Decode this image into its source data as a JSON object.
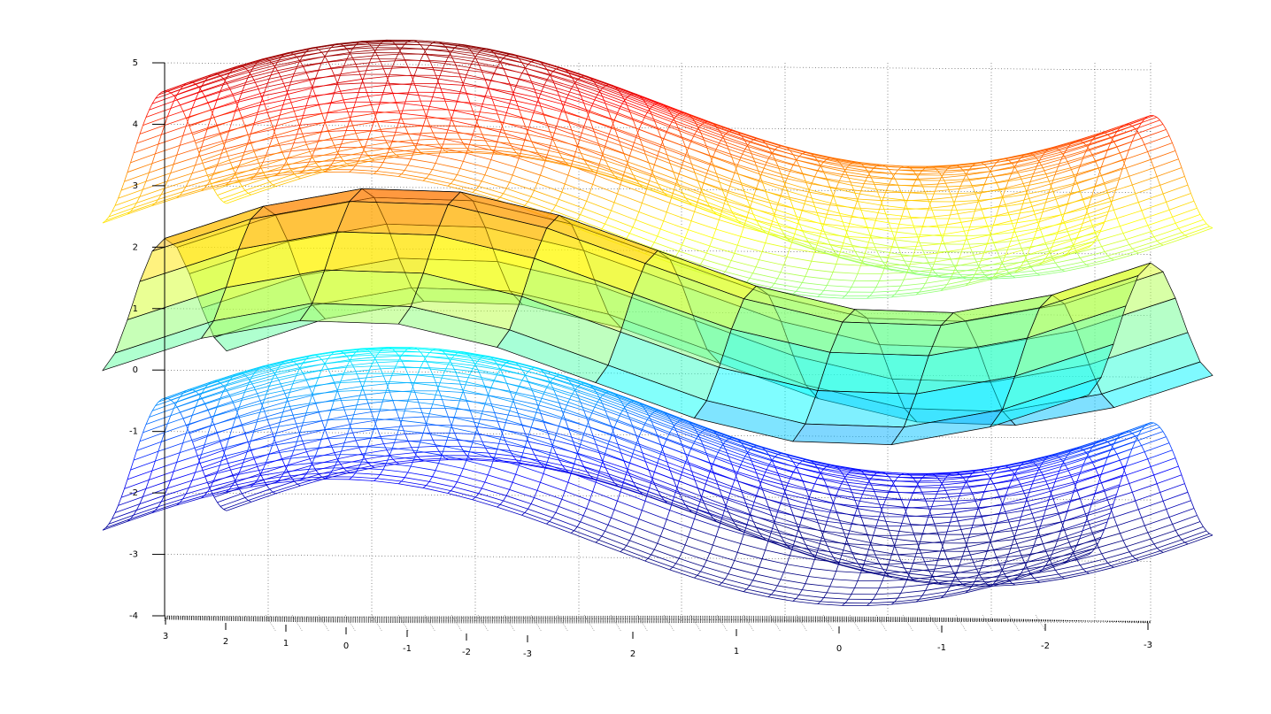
{
  "chart_data": {
    "type": "surface3d",
    "title": "",
    "xlabel": "",
    "ylabel": "",
    "zlabel": "",
    "zlim": [
      -4,
      5
    ],
    "z_ticks": [
      "5",
      "4",
      "3",
      "2",
      "1",
      "0",
      "-1",
      "-2",
      "-3",
      "-4"
    ],
    "x_ticks": [
      "3",
      "2",
      "1",
      "0",
      "-1",
      "-2",
      "-3"
    ],
    "y_ticks": [
      "2",
      "1",
      "0",
      "-1",
      "-2",
      "-3"
    ],
    "x_range": [
      -3,
      3
    ],
    "y_range": [
      -3,
      3
    ],
    "grid": true,
    "colormap": "jet",
    "series": [
      {
        "kind": "mesh",
        "function": "sin(x)+cos(y)",
        "z_offset": 3.4
      },
      {
        "kind": "faceted-surface",
        "function": "sin(x)+cos(y)",
        "z_offset": 1.0,
        "facealpha": 0.5
      },
      {
        "kind": "mesh",
        "function": "sin(x)+cos(y)",
        "z_offset": -1.6
      },
      {
        "kind": "contour-floor",
        "z_offset": -4
      }
    ]
  }
}
